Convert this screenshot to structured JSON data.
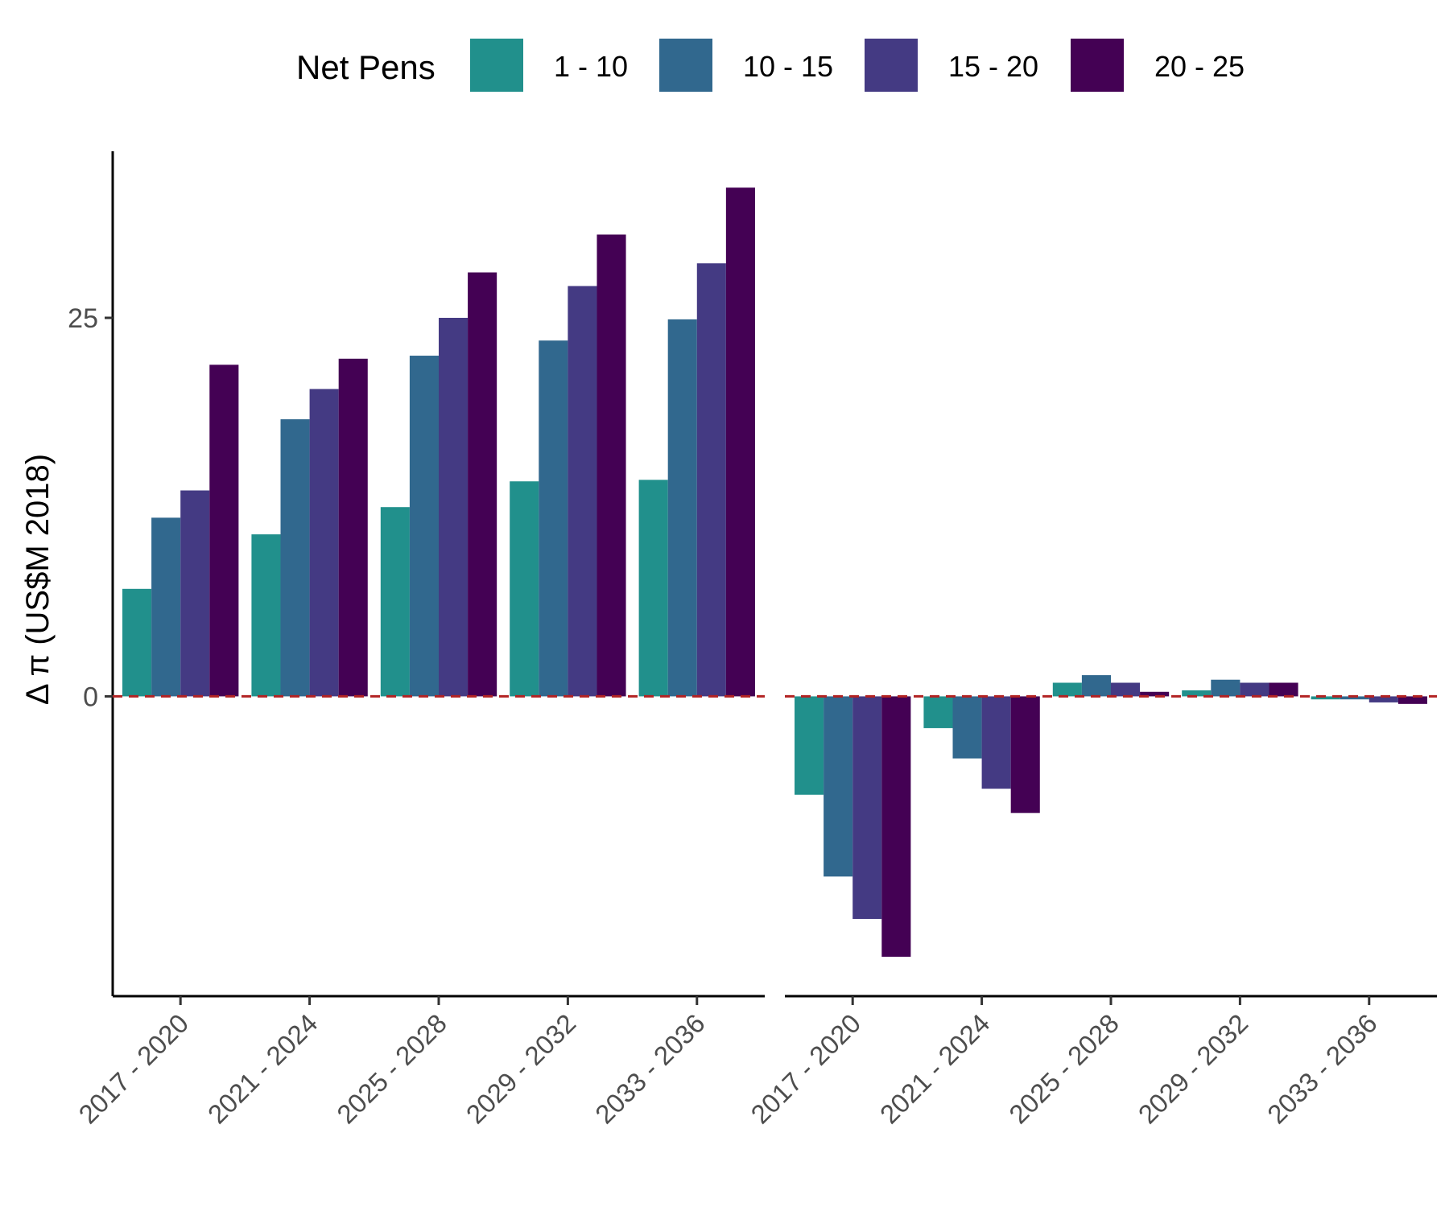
{
  "chart_data": {
    "type": "bar",
    "legend": {
      "title": "Net Pens",
      "placement": "top",
      "entries": [
        {
          "label": "1 - 10",
          "color": "#21908C"
        },
        {
          "label": "10 - 15",
          "color": "#31688E"
        },
        {
          "label": "15 - 20",
          "color": "#443A83"
        },
        {
          "label": "20 - 25",
          "color": "#440154"
        }
      ]
    },
    "ylabel": "Δ π (US$M 2018)",
    "ylim": [
      -19.8,
      36
    ],
    "yticks": [
      {
        "label": "0",
        "value": 0
      },
      {
        "label": "25",
        "value": 25
      }
    ],
    "reference_line": {
      "value": 0,
      "color": "#B22222",
      "style": "dashed"
    },
    "grid": false,
    "categories": [
      "2017 - 2020",
      "2021 - 2024",
      "2025 - 2028",
      "2029 - 2032",
      "2033 - 2036"
    ],
    "panels": [
      {
        "series": [
          {
            "name": "1 - 10",
            "values": [
              7.1,
              10.7,
              12.5,
              14.2,
              14.3
            ]
          },
          {
            "name": "10 - 15",
            "values": [
              11.8,
              18.3,
              22.5,
              23.5,
              24.9
            ]
          },
          {
            "name": "15 - 20",
            "values": [
              13.6,
              20.3,
              25.0,
              27.1,
              28.6
            ]
          },
          {
            "name": "20 - 25",
            "values": [
              21.9,
              22.3,
              28.0,
              30.5,
              33.6
            ]
          }
        ]
      },
      {
        "series": [
          {
            "name": "1 - 10",
            "values": [
              -6.5,
              -2.1,
              0.9,
              0.4,
              -0.2
            ]
          },
          {
            "name": "10 - 15",
            "values": [
              -11.9,
              -4.1,
              1.4,
              1.1,
              -0.2
            ]
          },
          {
            "name": "15 - 20",
            "values": [
              -14.7,
              -6.1,
              0.9,
              0.9,
              -0.4
            ]
          },
          {
            "name": "20 - 25",
            "values": [
              -17.2,
              -7.7,
              0.3,
              0.9,
              -0.5
            ]
          }
        ]
      }
    ]
  }
}
